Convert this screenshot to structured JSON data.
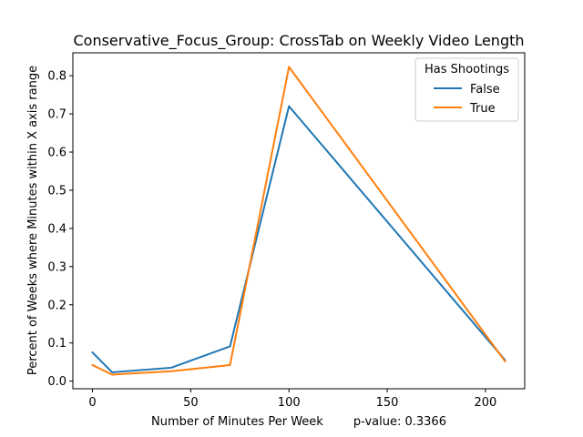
{
  "chart_data": {
    "type": "line",
    "title": "Conservative_Focus_Group: CrossTab on Weekly Video Length",
    "xlabel": "Number of Minutes Per Week        p-value: 0.3366",
    "ylabel": "Percent of Weeks where Minutes within X axis range",
    "xlim": [
      -10,
      220
    ],
    "ylim": [
      -0.02,
      0.86
    ],
    "xticks": [
      0,
      50,
      100,
      150,
      200
    ],
    "yticks": [
      0.0,
      0.1,
      0.2,
      0.3,
      0.4,
      0.5,
      0.6,
      0.7,
      0.8
    ],
    "ytick_labels": [
      "0.0",
      "0.1",
      "0.2",
      "0.3",
      "0.4",
      "0.5",
      "0.6",
      "0.7",
      "0.8"
    ],
    "legend": {
      "title": "Has Shootings",
      "position": "top-right"
    },
    "series": [
      {
        "name": "False",
        "color": "#1f77b4",
        "x": [
          0,
          10,
          40,
          70,
          100,
          210
        ],
        "y": [
          0.075,
          0.023,
          0.035,
          0.091,
          0.72,
          0.055
        ]
      },
      {
        "name": "True",
        "color": "#ff7f0e",
        "x": [
          0,
          10,
          40,
          70,
          100,
          210
        ],
        "y": [
          0.042,
          0.017,
          0.026,
          0.042,
          0.823,
          0.052
        ]
      }
    ]
  }
}
